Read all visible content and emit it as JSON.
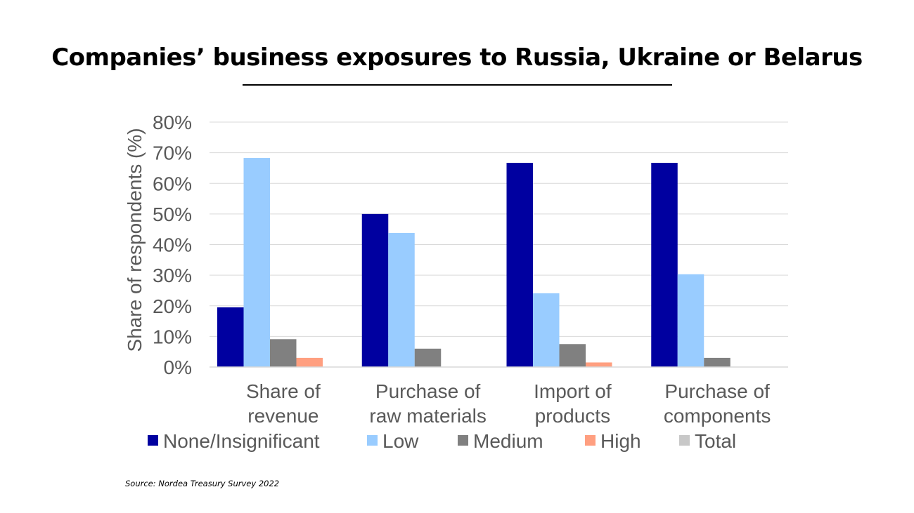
{
  "title": "Companies’ business exposures to Russia, Ukraine or Belarus",
  "source": "Source: Nordea Treasury Survey 2022",
  "colors": {
    "none_insignificant": "#0000A0",
    "low": "#99CCFF",
    "medium": "#808080",
    "high": "#FF9F80",
    "total": "#C8C8C8",
    "grid": "#D9D9D9",
    "axis_text": "#595959"
  },
  "chart_data": {
    "type": "bar",
    "title": "Companies’ business exposures to Russia, Ukraine or Belarus",
    "ylabel": "Share of respondents (%)",
    "xlabel": "",
    "ylim": [
      0,
      80
    ],
    "yticks": [
      "0%",
      "10%",
      "20%",
      "30%",
      "40%",
      "50%",
      "60%",
      "70%",
      "80%"
    ],
    "grid": true,
    "legend_position": "bottom",
    "categories": [
      [
        "Share of",
        "revenue"
      ],
      [
        "Purchase of",
        "raw materials"
      ],
      [
        "Import of",
        "products"
      ],
      [
        "Purchase of",
        "components"
      ]
    ],
    "series": [
      {
        "name": "None/Insignificant",
        "color": "#0000A0",
        "values": [
          19.5,
          50,
          66.7,
          66.7
        ]
      },
      {
        "name": "Low",
        "color": "#99CCFF",
        "values": [
          68.3,
          43.8,
          24.1,
          30.3
        ]
      },
      {
        "name": "Medium",
        "color": "#808080",
        "values": [
          9.1,
          6.0,
          7.5,
          3.0
        ]
      },
      {
        "name": "High",
        "color": "#FF9F80",
        "values": [
          3.0,
          0,
          1.5,
          0
        ]
      },
      {
        "name": "Total",
        "color": "#C8C8C8",
        "values": [
          0,
          0,
          0,
          0
        ]
      }
    ]
  }
}
